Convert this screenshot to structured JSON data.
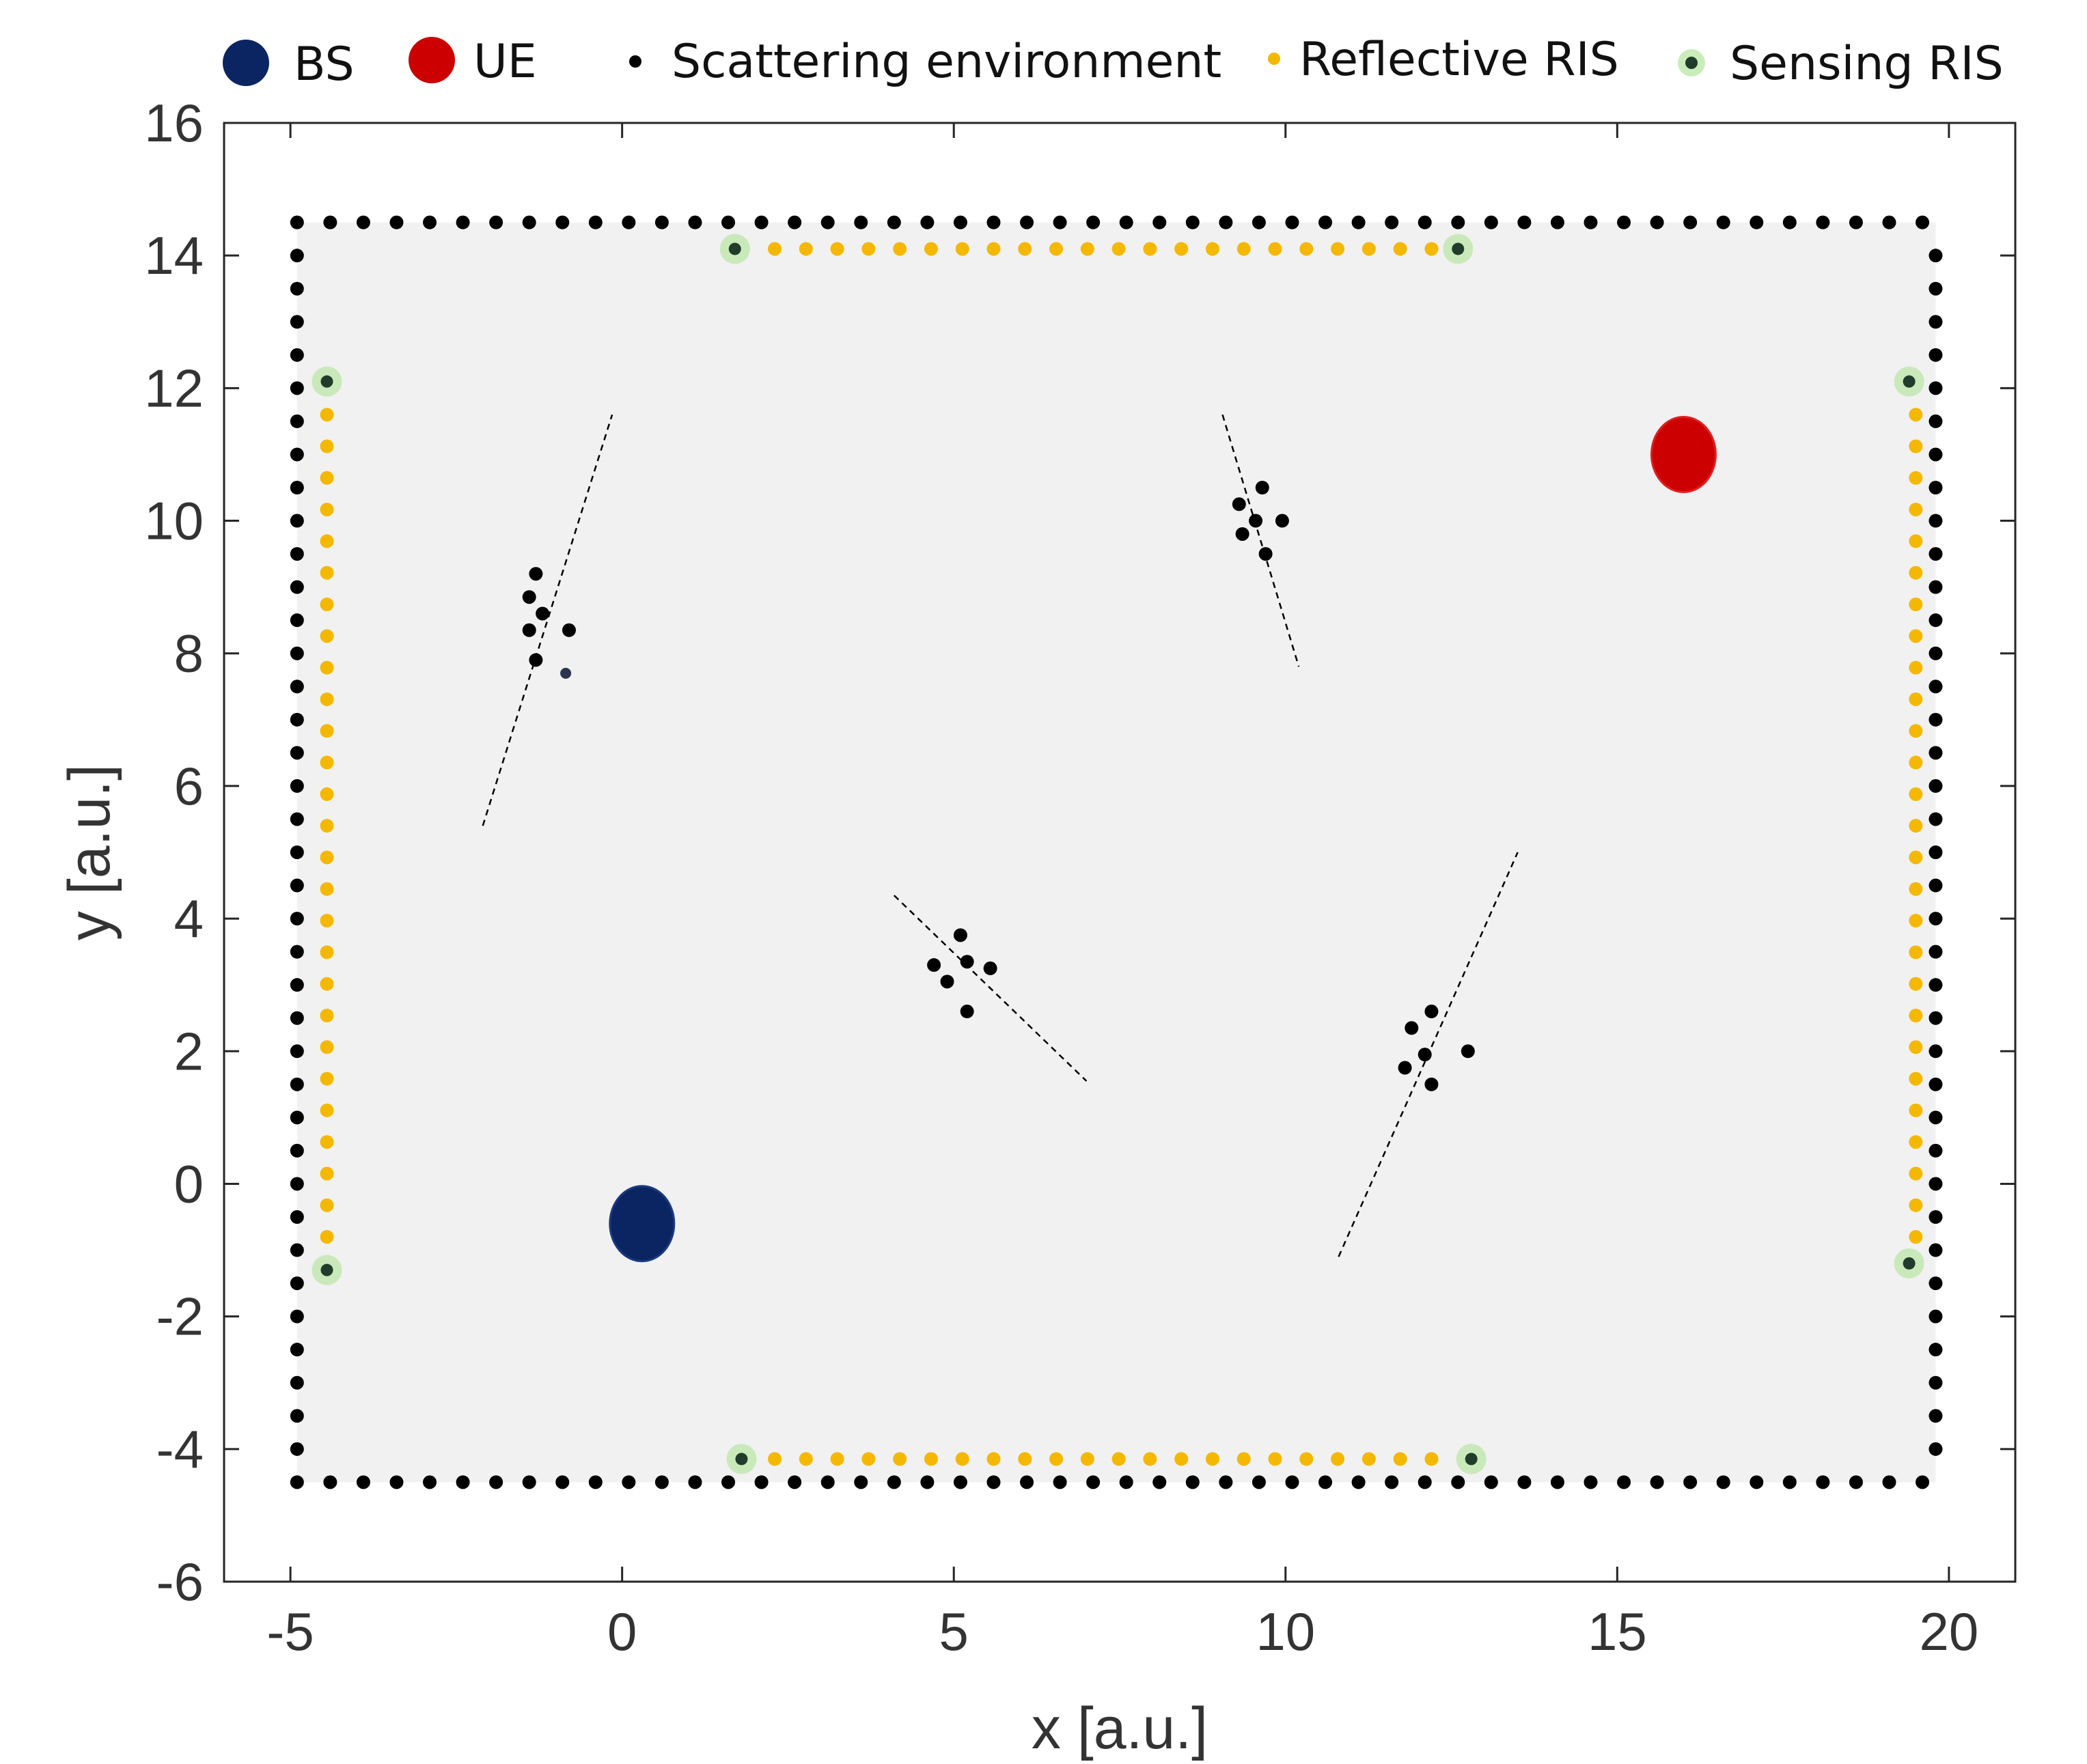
{
  "chart_data": {
    "type": "scatter",
    "title": "",
    "xlabel": "x [a.u.]",
    "ylabel": "y [a.u.]",
    "xlim": [
      -6,
      21
    ],
    "ylim": [
      -6,
      16
    ],
    "xticks": [
      -5,
      0,
      5,
      10,
      15,
      20
    ],
    "yticks": [
      -6,
      -4,
      -2,
      0,
      2,
      4,
      6,
      8,
      10,
      12,
      14,
      16
    ],
    "grid": false,
    "legend_placement": "top",
    "legend": [
      {
        "label": "BS",
        "marker": "large-circle",
        "color": "#0b2562"
      },
      {
        "label": "UE",
        "marker": "large-circle",
        "color": "#cc0000"
      },
      {
        "label": "Scattering environment",
        "marker": "dot",
        "color": "#000000"
      },
      {
        "label": "Reflective RIS",
        "marker": "dot",
        "color": "#f5b800"
      },
      {
        "label": "Sensing RIS",
        "marker": "glow-dot",
        "color": "#1f3d2a"
      }
    ],
    "bs": {
      "x": 0.3,
      "y": -0.6
    },
    "ue": {
      "x": 16.0,
      "y": 11.0
    },
    "boundary": {
      "x_min": -4.9,
      "x_max": 19.8,
      "y_min": -4.5,
      "y_max": 14.5,
      "spacing": 0.5
    },
    "reflective_ris": [
      {
        "orientation": "horizontal",
        "from": 2.3,
        "to": 12.2,
        "at": 14.1,
        "count": 22
      },
      {
        "orientation": "horizontal",
        "from": 2.3,
        "to": 12.2,
        "at": -4.15,
        "count": 22
      },
      {
        "orientation": "vertical",
        "from": -0.8,
        "to": 11.6,
        "at": -4.45,
        "count": 27
      },
      {
        "orientation": "vertical",
        "from": -0.8,
        "to": 11.6,
        "at": 19.5,
        "count": 27
      }
    ],
    "sensing_ris": [
      {
        "x": 1.7,
        "y": 14.1
      },
      {
        "x": 12.6,
        "y": 14.1
      },
      {
        "x": -4.45,
        "y": 12.1
      },
      {
        "x": 19.4,
        "y": 12.1
      },
      {
        "x": -4.45,
        "y": -1.3
      },
      {
        "x": 19.4,
        "y": -1.2
      },
      {
        "x": 1.8,
        "y": -4.15
      },
      {
        "x": 12.8,
        "y": -4.15
      }
    ],
    "scatter_clusters": [
      {
        "points": [
          [
            -1.3,
            9.2
          ],
          [
            -1.4,
            8.85
          ],
          [
            -1.2,
            8.6
          ],
          [
            -1.4,
            8.35
          ],
          [
            -0.8,
            8.35
          ],
          [
            -1.3,
            7.9
          ]
        ],
        "marker_point": [
          -0.85,
          7.7
        ],
        "trend_line": [
          [
            -2.1,
            5.4
          ],
          [
            -0.15,
            11.6
          ]
        ]
      },
      {
        "points": [
          [
            9.3,
            10.25
          ],
          [
            9.65,
            10.5
          ],
          [
            9.55,
            10.0
          ],
          [
            9.95,
            10.0
          ],
          [
            9.35,
            9.8
          ],
          [
            9.7,
            9.5
          ]
        ],
        "trend_line": [
          [
            9.05,
            11.6
          ],
          [
            10.2,
            7.8
          ]
        ]
      },
      {
        "points": [
          [
            5.1,
            3.75
          ],
          [
            4.7,
            3.3
          ],
          [
            5.2,
            3.35
          ],
          [
            5.55,
            3.25
          ],
          [
            4.9,
            3.05
          ],
          [
            5.2,
            2.6
          ]
        ],
        "trend_line": [
          [
            4.1,
            4.35
          ],
          [
            7.0,
            1.55
          ]
        ]
      },
      {
        "points": [
          [
            12.2,
            2.6
          ],
          [
            11.9,
            2.35
          ],
          [
            12.1,
            1.95
          ],
          [
            12.75,
            2.0
          ],
          [
            11.8,
            1.75
          ],
          [
            12.2,
            1.5
          ]
        ],
        "trend_line": [
          [
            10.8,
            -1.1
          ],
          [
            13.5,
            5.0
          ]
        ]
      }
    ]
  }
}
